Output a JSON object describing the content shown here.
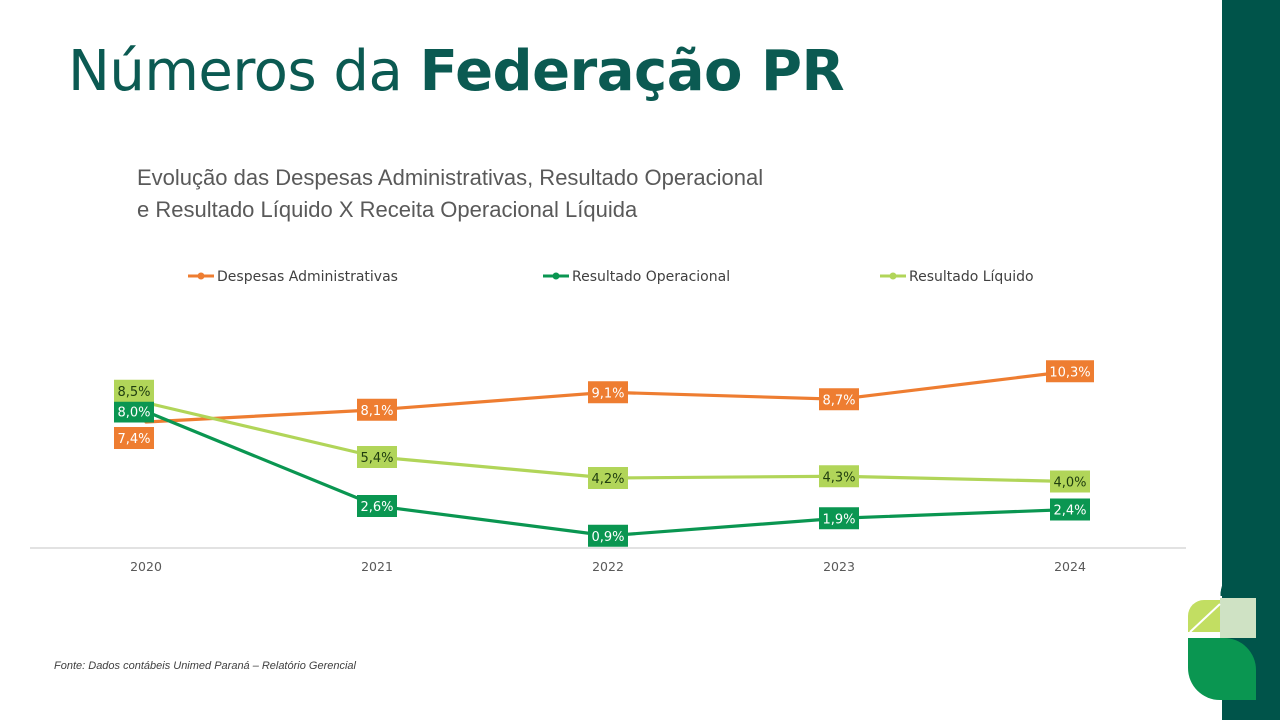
{
  "title": {
    "regular": "Números da ",
    "bold": "Federação PR"
  },
  "subtitle": {
    "line1": "Evolução das Despesas Administrativas, Resultado Operacional",
    "line2": "e Resultado Líquido X Receita Operacional Líquida"
  },
  "source": {
    "label": "Fonte:",
    "text": "Dados contábeis Unimed Paraná",
    "separator": "–",
    "detail": "Relatório Gerencial"
  },
  "colors": {
    "brand_dark": "#00544a",
    "despesas": "#ee7d31",
    "operacional": "#0a9651",
    "liquido": "#b1d559"
  },
  "chart_data": {
    "type": "line",
    "x": [
      "2020",
      "2021",
      "2022",
      "2023",
      "2024"
    ],
    "series": [
      {
        "name": "Despesas Administrativas",
        "values": [
          7.4,
          8.1,
          9.1,
          8.7,
          10.3
        ],
        "labels": [
          "7,4%",
          "8,1%",
          "9,1%",
          "8,7%",
          "10,3%"
        ],
        "color": "#ee7d31",
        "label_text_color": "#ffffff"
      },
      {
        "name": "Resultado Operacional",
        "values": [
          8.0,
          2.6,
          0.9,
          1.9,
          2.4
        ],
        "labels": [
          "8,0%",
          "2,6%",
          "0,9%",
          "1,9%",
          "2,4%"
        ],
        "color": "#0a9651",
        "label_text_color": "#ffffff"
      },
      {
        "name": "Resultado Líquido",
        "values": [
          8.5,
          5.4,
          4.2,
          4.3,
          4.0
        ],
        "labels": [
          "8,5%",
          "5,4%",
          "4,2%",
          "4,3%",
          "4,0%"
        ],
        "color": "#b1d559",
        "label_text_color": "#1f3d0f"
      }
    ],
    "ylim": [
      0,
      12
    ],
    "unit": "%",
    "grid": false,
    "legend": "top",
    "y_axis_visible": false
  }
}
